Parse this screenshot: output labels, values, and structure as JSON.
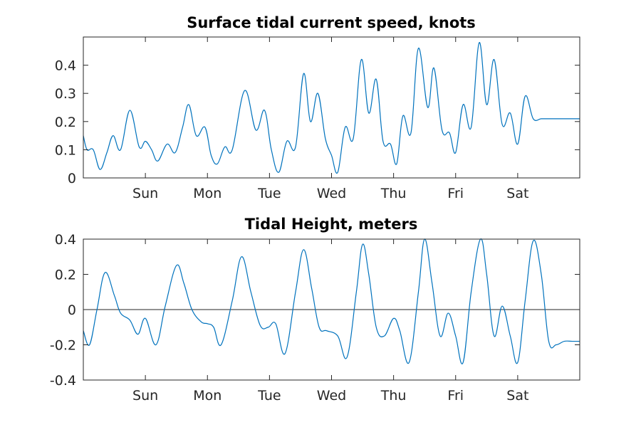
{
  "colors": {
    "series": "#0072BD",
    "axes": "#262626"
  },
  "chart_data": [
    {
      "type": "line",
      "title": "Surface tidal current speed, knots",
      "xlabel": "",
      "ylabel": "",
      "xlim": [
        0,
        8
      ],
      "ylim": [
        0,
        0.5
      ],
      "yticks": [
        0,
        0.1,
        0.2,
        0.3,
        0.4
      ],
      "ytick_labels": [
        "0",
        "0.1",
        "0.2",
        "0.3",
        "0.4"
      ],
      "xticks": [
        1,
        2,
        3,
        4,
        5,
        6,
        7
      ],
      "xtick_labels": [
        "Sun",
        "Mon",
        "Tue",
        "Wed",
        "Thu",
        "Fri",
        "Sat"
      ],
      "grid": false,
      "zero_line": false,
      "series": [
        {
          "x": [
            0,
            0.06,
            0.16,
            0.27,
            0.38,
            0.48,
            0.6,
            0.75,
            0.9,
            1.0,
            1.1,
            1.2,
            1.35,
            1.48,
            1.6,
            1.7,
            1.82,
            1.96,
            2.06,
            2.16,
            2.28,
            2.4,
            2.6,
            2.78,
            2.92,
            3.03,
            3.15,
            3.28,
            3.42,
            3.55,
            3.66,
            3.78,
            3.9,
            4.0,
            4.1,
            4.22,
            4.35,
            4.48,
            4.6,
            4.72,
            4.83,
            4.95,
            5.05,
            5.15,
            5.28,
            5.4,
            5.55,
            5.65,
            5.78,
            5.9,
            6.0,
            6.12,
            6.25,
            6.38,
            6.5,
            6.62,
            6.75,
            6.88,
            7.0,
            7.12,
            7.25,
            7.38,
            7.5,
            7.6,
            7.7,
            7.82,
            7.93,
            8.0
          ],
          "y": [
            0.15,
            0.1,
            0.1,
            0.03,
            0.09,
            0.15,
            0.1,
            0.24,
            0.11,
            0.13,
            0.1,
            0.06,
            0.12,
            0.09,
            0.18,
            0.26,
            0.15,
            0.18,
            0.08,
            0.05,
            0.11,
            0.1,
            0.31,
            0.17,
            0.24,
            0.1,
            0.02,
            0.13,
            0.11,
            0.37,
            0.2,
            0.3,
            0.14,
            0.08,
            0.02,
            0.18,
            0.14,
            0.42,
            0.23,
            0.35,
            0.13,
            0.12,
            0.05,
            0.22,
            0.16,
            0.46,
            0.25,
            0.39,
            0.17,
            0.16,
            0.09,
            0.26,
            0.18,
            0.48,
            0.26,
            0.42,
            0.19,
            0.23,
            0.12,
            0.29,
            0.21,
            0.21,
            0.21,
            0.21,
            0.21,
            0.21,
            0.21,
            0.21
          ]
        }
      ]
    },
    {
      "type": "line",
      "title": "Tidal Height, meters",
      "xlabel": "",
      "ylabel": "",
      "xlim": [
        0,
        8
      ],
      "ylim": [
        -0.4,
        0.4
      ],
      "yticks": [
        -0.4,
        -0.2,
        0,
        0.2,
        0.4
      ],
      "ytick_labels": [
        "-0.4",
        "-0.2",
        "0",
        "0.2",
        "0.4"
      ],
      "xticks": [
        1,
        2,
        3,
        4,
        5,
        6,
        7
      ],
      "xtick_labels": [
        "Sun",
        "Mon",
        "Tue",
        "Wed",
        "Thu",
        "Fri",
        "Sat"
      ],
      "grid": false,
      "zero_line": true,
      "series": [
        {
          "x": [
            0,
            0.1,
            0.22,
            0.35,
            0.5,
            0.6,
            0.75,
            0.88,
            1.0,
            1.17,
            1.32,
            1.5,
            1.62,
            1.75,
            1.9,
            2.0,
            2.1,
            2.22,
            2.4,
            2.55,
            2.7,
            2.85,
            2.98,
            3.1,
            3.25,
            3.42,
            3.55,
            3.68,
            3.8,
            3.92,
            4.1,
            4.25,
            4.4,
            4.5,
            4.6,
            4.72,
            4.85,
            5.0,
            5.1,
            5.25,
            5.4,
            5.5,
            5.62,
            5.75,
            5.88,
            6.0,
            6.12,
            6.25,
            6.4,
            6.5,
            6.62,
            6.75,
            6.88,
            7.0,
            7.12,
            7.25,
            7.38,
            7.5,
            7.62,
            7.75,
            7.88,
            8.0
          ],
          "y": [
            -0.12,
            -0.2,
            0.0,
            0.21,
            0.08,
            -0.02,
            -0.06,
            -0.14,
            -0.05,
            -0.2,
            0.02,
            0.25,
            0.15,
            0.0,
            -0.07,
            -0.08,
            -0.1,
            -0.2,
            0.05,
            0.3,
            0.1,
            -0.09,
            -0.1,
            -0.08,
            -0.25,
            0.1,
            0.34,
            0.12,
            -0.1,
            -0.12,
            -0.15,
            -0.27,
            0.1,
            0.37,
            0.2,
            -0.1,
            -0.15,
            -0.05,
            -0.12,
            -0.3,
            0.1,
            0.4,
            0.15,
            -0.15,
            -0.02,
            -0.15,
            -0.3,
            0.1,
            0.4,
            0.2,
            -0.15,
            0.02,
            -0.15,
            -0.3,
            0.05,
            0.39,
            0.2,
            -0.18,
            -0.2,
            -0.18,
            -0.18,
            -0.18
          ]
        }
      ]
    }
  ]
}
